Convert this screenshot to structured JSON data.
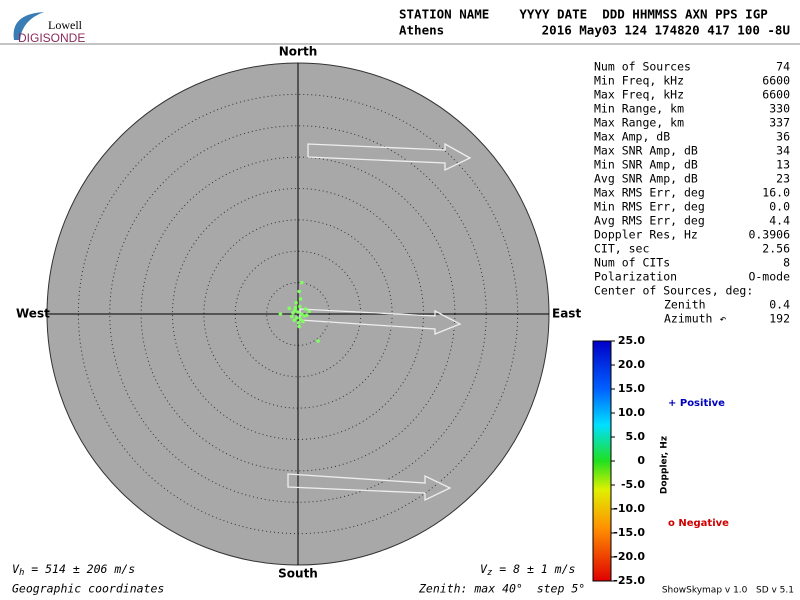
{
  "logo": {
    "top": "Lowell",
    "bottom": "DIGISONDE"
  },
  "header": {
    "line1": "STATION NAME    YYYY DATE  DDD HHMMSS AXN PPS IGP",
    "station": "Athens",
    "line2": "2016 May03 124 174820 417 100 -8U"
  },
  "compass": {
    "north": "North",
    "south": "South",
    "west": "West",
    "east": "East"
  },
  "stats": [
    [
      "Num of Sources",
      "74"
    ],
    [
      "Min Freq, kHz",
      "6600"
    ],
    [
      "Max Freq, kHz",
      "6600"
    ],
    [
      "Min Range, km",
      "330"
    ],
    [
      "Max Range, km",
      "337"
    ],
    [
      "Max Amp, dB",
      "36"
    ],
    [
      "Max SNR Amp, dB",
      "34"
    ],
    [
      "Min SNR Amp, dB",
      "13"
    ],
    [
      "Avg SNR Amp, dB",
      "23"
    ],
    [
      "Max RMS Err, deg",
      "16.0"
    ],
    [
      "Min RMS Err, deg",
      "0.0"
    ],
    [
      "Avg RMS Err, deg",
      "4.4"
    ],
    [
      "Doppler Res, Hz",
      "0.3906"
    ],
    [
      "CIT, sec",
      "2.56"
    ],
    [
      "Num of CITs",
      "8"
    ],
    [
      "Polarization",
      "O-mode"
    ]
  ],
  "center": {
    "title": "Center of Sources, deg:",
    "rows": [
      [
        "Zenith",
        "0.4"
      ],
      [
        "Azimuth ↶",
        "192"
      ]
    ]
  },
  "colorbar": {
    "title": "Doppler, Hz",
    "lim": [
      -25,
      25
    ],
    "ticks": [
      {
        "value": 25,
        "label": "25.0"
      },
      {
        "value": 20,
        "label": "20.0"
      },
      {
        "value": 15,
        "label": "15.0"
      },
      {
        "value": 10,
        "label": "10.0"
      },
      {
        "value": 5,
        "label": "5.0"
      },
      0,
      {
        "value": -5,
        "label": "-5.0"
      },
      {
        "value": -10,
        "label": "-10.0"
      },
      {
        "value": -15,
        "label": "-15.0"
      },
      {
        "value": -20,
        "label": "-20.0"
      },
      {
        "value": -25,
        "label": "-25.0"
      }
    ],
    "positive": "+ Positive",
    "negative": "o Negative"
  },
  "skymap": {
    "zenith_max": 40,
    "step": 5,
    "points": [
      [
        0.6,
        5.0
      ],
      [
        0.2,
        3.6
      ],
      [
        0.4,
        2.4
      ],
      [
        -0.3,
        1.8
      ],
      [
        0.3,
        1.2
      ],
      [
        -0.5,
        0.6
      ],
      [
        0.0,
        0.3
      ],
      [
        0.6,
        0.0
      ],
      [
        -0.8,
        0.2
      ],
      [
        1.0,
        -0.3
      ],
      [
        -0.2,
        -0.6
      ],
      [
        0.4,
        -0.8
      ],
      [
        -1.0,
        -0.4
      ],
      [
        1.4,
        -0.2
      ],
      [
        -0.6,
        -1.0
      ],
      [
        0.8,
        -1.2
      ],
      [
        0.1,
        -1.4
      ],
      [
        -2.8,
        0.0
      ],
      [
        1.8,
        0.4
      ],
      [
        -0.4,
        1.0
      ],
      [
        0.2,
        -2.0
      ],
      [
        3.2,
        -4.3
      ],
      [
        -1.4,
        0.9
      ],
      [
        1.2,
        0.8
      ]
    ]
  },
  "footer": {
    "vh_v": "V",
    "vh_sub": "h",
    "vh_text": " = 514 ± 206 m/s",
    "vz_v": "V",
    "vz_sub": "z",
    "vz_text": " = 8 ± 1 m/s",
    "coords": "Geographic coordinates",
    "zenith": "Zenith: max 40°  step 5°",
    "version": "ShowSkymap v 1.0   SD v 5.1"
  }
}
